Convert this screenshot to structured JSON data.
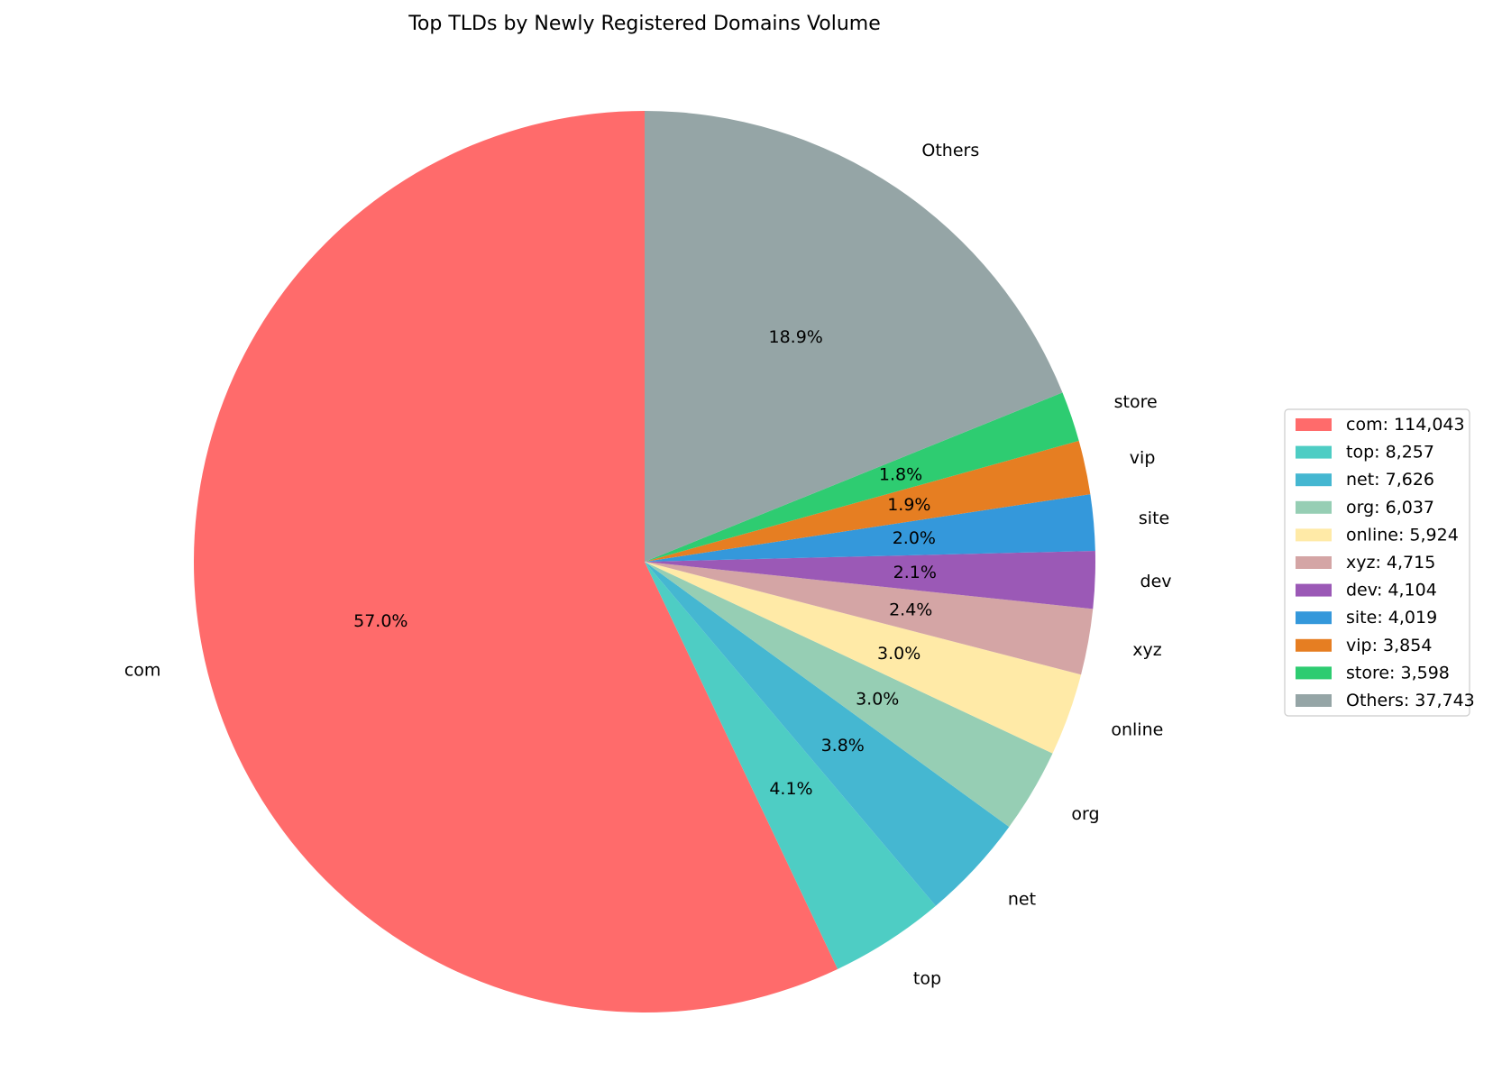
{
  "chart_data": {
    "type": "pie",
    "title": "Top TLDs by Newly Registered Domains Volume",
    "start_angle_deg": 90,
    "direction": "counterclockwise",
    "legend_placement": "center-right",
    "slices": [
      {
        "label": "com",
        "value": 114043,
        "percent_label": "57.0%",
        "legend_label": "com: 114,043",
        "color": "#ff6b6b"
      },
      {
        "label": "top",
        "value": 8257,
        "percent_label": "4.1%",
        "legend_label": "top: 8,257",
        "color": "#4ecdc4"
      },
      {
        "label": "net",
        "value": 7626,
        "percent_label": "3.8%",
        "legend_label": "net: 7,626",
        "color": "#45b7d1"
      },
      {
        "label": "org",
        "value": 6037,
        "percent_label": "3.0%",
        "legend_label": "org: 6,037",
        "color": "#96ceb4"
      },
      {
        "label": "online",
        "value": 5924,
        "percent_label": "3.0%",
        "legend_label": "online: 5,924",
        "color": "#ffeaa7"
      },
      {
        "label": "xyz",
        "value": 4715,
        "percent_label": "2.4%",
        "legend_label": "xyz: 4,715",
        "color": "#d4a5a5"
      },
      {
        "label": "dev",
        "value": 4104,
        "percent_label": "2.1%",
        "legend_label": "dev: 4,104",
        "color": "#9b59b6"
      },
      {
        "label": "site",
        "value": 4019,
        "percent_label": "2.0%",
        "legend_label": "site: 4,019",
        "color": "#3498db"
      },
      {
        "label": "vip",
        "value": 3854,
        "percent_label": "1.9%",
        "legend_label": "vip: 3,854",
        "color": "#e67e22"
      },
      {
        "label": "store",
        "value": 3598,
        "percent_label": "1.8%",
        "legend_label": "store: 3,598",
        "color": "#2ecc71"
      },
      {
        "label": "Others",
        "value": 37743,
        "percent_label": "18.9%",
        "legend_label": "Others: 37,743",
        "color": "#95a5a6"
      }
    ]
  }
}
